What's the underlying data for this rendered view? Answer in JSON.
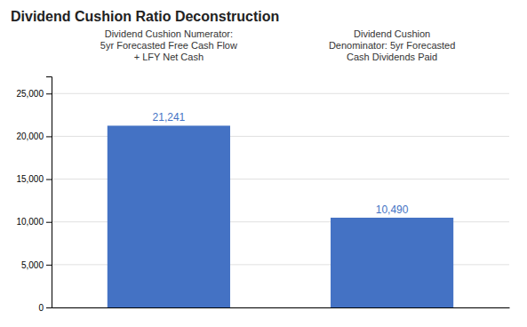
{
  "chart_data": {
    "type": "bar",
    "title": "Dividend Cushion Ratio Deconstruction",
    "categories": [
      "Dividend Cushion Numerator:\n5yr Forecasted Free Cash Flow\n+ LFY Net Cash",
      "Dividend Cushion\nDenominator: 5yr Forecasted\nCash Dividends Paid"
    ],
    "values": [
      21241,
      10490
    ],
    "value_labels": [
      "21,241",
      "10,490"
    ],
    "data_labels": true,
    "color": "#4472C4",
    "ylim": [
      0,
      27000
    ],
    "yticks": [
      0,
      {
        "value": 5000,
        "label": "5,000"
      },
      {
        "value": 10000,
        "label": "10,000"
      },
      {
        "value": 15000,
        "label": "15,000"
      },
      {
        "value": 20000,
        "label": "20,000"
      },
      {
        "value": 25000,
        "label": "25,000"
      }
    ],
    "grid": true
  }
}
